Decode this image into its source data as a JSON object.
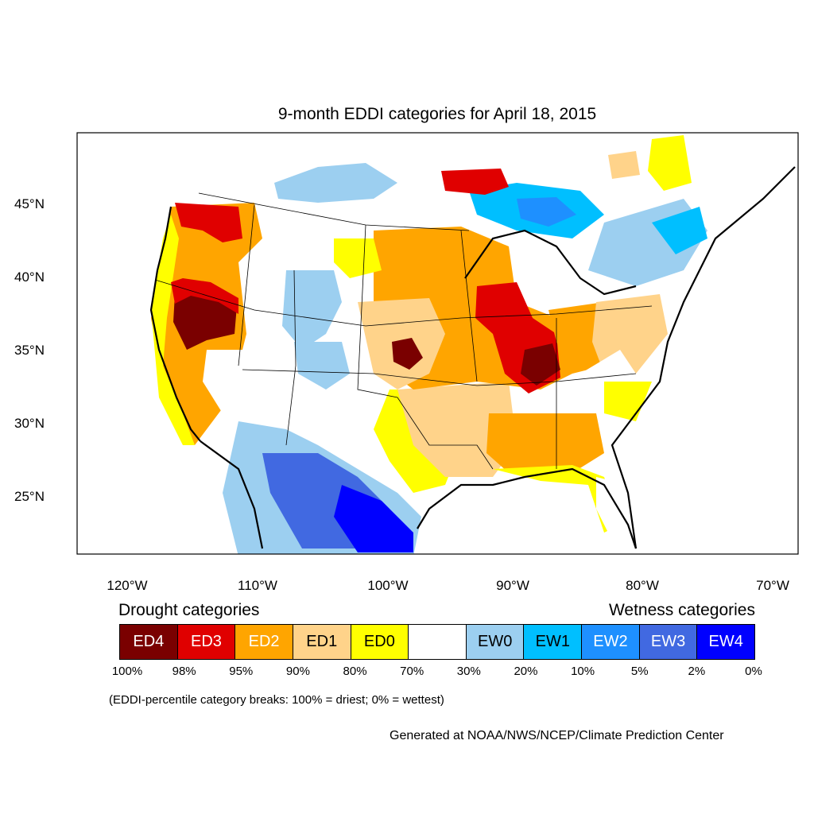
{
  "title": "9-month EDDI categories for April 18, 2015",
  "lat_ticks": [
    "45°N",
    "40°N",
    "35°N",
    "30°N",
    "25°N"
  ],
  "lon_ticks": [
    "120°W",
    "110°W",
    "100°W",
    "90°W",
    "80°W",
    "70°W"
  ],
  "legend": {
    "drought_heading": "Drought categories",
    "wetness_heading": "Wetness categories",
    "categories": [
      {
        "label": "ED4",
        "color": "#7a0000",
        "text_color": "#ffffff"
      },
      {
        "label": "ED3",
        "color": "#e00000",
        "text_color": "#ffffff"
      },
      {
        "label": "ED2",
        "color": "#ffa500",
        "text_color": "#ffffff"
      },
      {
        "label": "ED1",
        "color": "#ffd38a",
        "text_color": "#000000"
      },
      {
        "label": "ED0",
        "color": "#ffff00",
        "text_color": "#000000"
      },
      {
        "label": "",
        "color": "#ffffff",
        "text_color": "#000000"
      },
      {
        "label": "EW0",
        "color": "#9ccff0",
        "text_color": "#000000"
      },
      {
        "label": "EW1",
        "color": "#00bfff",
        "text_color": "#000000"
      },
      {
        "label": "EW2",
        "color": "#1e90ff",
        "text_color": "#ffffff"
      },
      {
        "label": "EW3",
        "color": "#4169e1",
        "text_color": "#ffffff"
      },
      {
        "label": "EW4",
        "color": "#0000ff",
        "text_color": "#ffffff"
      }
    ],
    "percent_breaks": [
      "100%",
      "98%",
      "95%",
      "90%",
      "80%",
      "70%",
      "30%",
      "20%",
      "10%",
      "5%",
      "2%",
      "0%"
    ]
  },
  "note": "(EDDI-percentile category breaks: 100% = driest; 0% = wettest)",
  "credit": "Generated at NOAA/NWS/NCEP/Climate Prediction Center"
}
